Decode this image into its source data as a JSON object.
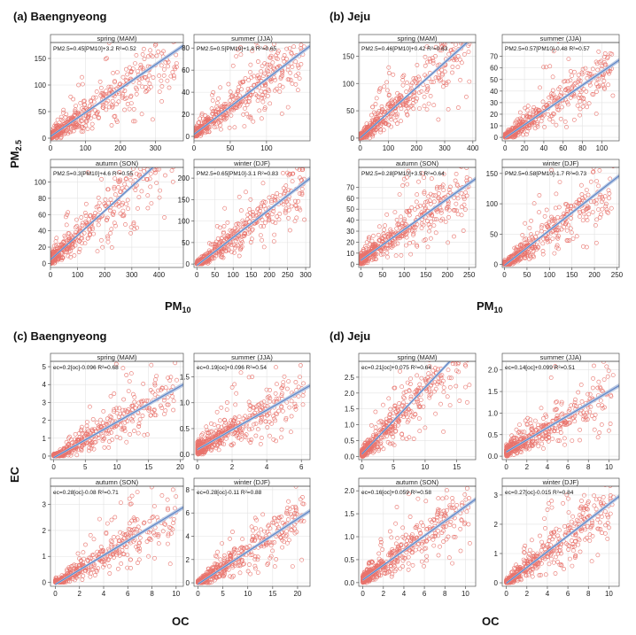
{
  "figure_labels": {
    "a_title": "(a) Baengnyeong",
    "b_title": "(b) Jeju",
    "c_title": "(c) Baengnyeong",
    "d_title": "(d) Jeju",
    "top_ylabel": "PM2.5",
    "top_xlabel_left": "PM10",
    "top_xlabel_right": "PM10",
    "bottom_ylabel": "EC",
    "bottom_xlabel_left": "OC",
    "bottom_xlabel_right": "OC"
  },
  "colors": {
    "points": "#e8736c",
    "fit_line": "#5b83c6",
    "confidence_band": "#b9c8e2"
  },
  "chart_data": [
    {
      "group": "a",
      "type": "scatter",
      "season": "spring (MAM)",
      "equation": "PM2.5=0.45[PM10]+3.2 R²=0.52",
      "slope": 0.45,
      "intercept": 3.2,
      "xlim": [
        0,
        380
      ],
      "ylim": [
        -5,
        180
      ],
      "xticks": [
        0,
        100,
        200,
        300
      ],
      "yticks": [
        0,
        50,
        100,
        150
      ],
      "xvar": "PM10",
      "yvar": "PM2.5"
    },
    {
      "group": "a",
      "type": "scatter",
      "season": "summer (JJA)",
      "equation": "PM2.5=0.5[PM10]+1.8 R²=0.65",
      "slope": 0.5,
      "intercept": 1.8,
      "xlim": [
        0,
        160
      ],
      "ylim": [
        -4,
        85
      ],
      "xticks": [
        0,
        50,
        100
      ],
      "yticks": [
        0,
        20,
        40,
        60,
        80
      ],
      "xvar": "PM10",
      "yvar": "PM2.5"
    },
    {
      "group": "a",
      "type": "scatter",
      "season": "autumn (SON)",
      "equation": "PM2.5=0.3[PM10]+4.6 R²=0.55",
      "slope": 0.3,
      "intercept": 4.6,
      "xlim": [
        0,
        490
      ],
      "ylim": [
        -5,
        118
      ],
      "xticks": [
        0,
        100,
        200,
        300,
        400
      ],
      "yticks": [
        0,
        20,
        40,
        60,
        80,
        100
      ],
      "xvar": "PM10",
      "yvar": "PM2.5"
    },
    {
      "group": "a",
      "type": "scatter",
      "season": "winter (DJF)",
      "equation": "PM2.5=0.65[PM10]-3.1 R²=0.83",
      "slope": 0.65,
      "intercept": -3.1,
      "xlim": [
        -8,
        312
      ],
      "ylim": [
        -8,
        225
      ],
      "xticks": [
        0,
        50,
        100,
        150,
        200,
        250,
        300
      ],
      "yticks": [
        0,
        50,
        100,
        150,
        200
      ],
      "xvar": "PM10",
      "yvar": "PM2.5"
    },
    {
      "group": "b",
      "type": "scatter",
      "season": "spring (MAM)",
      "equation": "PM2.5=0.46[PM10]+0.42 R²=0.63",
      "slope": 0.46,
      "intercept": 0.42,
      "xlim": [
        -5,
        410
      ],
      "ylim": [
        -5,
        175
      ],
      "xticks": [
        0,
        100,
        200,
        300,
        400
      ],
      "yticks": [
        0,
        50,
        100,
        150
      ],
      "xvar": "PM10",
      "yvar": "PM2.5"
    },
    {
      "group": "b",
      "type": "scatter",
      "season": "summer (JJA)",
      "equation": "PM2.5=0.57[PM10]-0.48 R²=0.57",
      "slope": 0.57,
      "intercept": -0.48,
      "xlim": [
        -3,
        118
      ],
      "ylim": [
        -3,
        82
      ],
      "xticks": [
        0,
        20,
        40,
        60,
        80,
        100
      ],
      "yticks": [
        0,
        10,
        20,
        30,
        40,
        50,
        60,
        70
      ],
      "xvar": "PM10",
      "yvar": "PM2.5"
    },
    {
      "group": "b",
      "type": "scatter",
      "season": "autumn (SON)",
      "equation": "PM2.5=0.28[PM10]+3.5 R²=0.64",
      "slope": 0.28,
      "intercept": 3.5,
      "xlim": [
        -5,
        265
      ],
      "ylim": [
        -3,
        88
      ],
      "xticks": [
        0,
        50,
        100,
        150,
        200,
        250
      ],
      "yticks": [
        0,
        10,
        20,
        30,
        40,
        50,
        60,
        70
      ],
      "xvar": "PM10",
      "yvar": "PM2.5"
    },
    {
      "group": "b",
      "type": "scatter",
      "season": "winter (DJF)",
      "equation": "PM2.5=0.58[PM10]-1.7 R²=0.73",
      "slope": 0.58,
      "intercept": -1.7,
      "xlim": [
        -5,
        255
      ],
      "ylim": [
        -5,
        160
      ],
      "xticks": [
        0,
        50,
        100,
        150,
        200,
        250
      ],
      "yticks": [
        0,
        50,
        100,
        150
      ],
      "xvar": "PM10",
      "yvar": "PM2.5"
    },
    {
      "group": "c",
      "type": "scatter",
      "season": "spring (MAM)",
      "equation": "ec=0.2[oc]-0.096 R²=0.68",
      "slope": 0.2,
      "intercept": -0.096,
      "xlim": [
        -0.5,
        20.5
      ],
      "ylim": [
        -0.2,
        5.3
      ],
      "xticks": [
        0,
        5,
        10,
        15,
        20
      ],
      "yticks": [
        0,
        1,
        2,
        3,
        4,
        5
      ],
      "xvar": "OC",
      "yvar": "EC"
    },
    {
      "group": "c",
      "type": "scatter",
      "season": "summer (JJA)",
      "equation": "ec=0.19[oc]+0.096 R²=0.54",
      "slope": 0.19,
      "intercept": 0.096,
      "xlim": [
        -0.2,
        6.5
      ],
      "ylim": [
        -0.1,
        1.8
      ],
      "xticks": [
        0,
        2,
        4,
        6
      ],
      "yticks": [
        0.0,
        0.5,
        1.0,
        1.5
      ],
      "xvar": "OC",
      "yvar": "EC"
    },
    {
      "group": "c",
      "type": "scatter",
      "season": "autumn (SON)",
      "equation": "ec=0.28[oc]-0.08 R²=0.71",
      "slope": 0.28,
      "intercept": -0.08,
      "xlim": [
        -0.4,
        10.6
      ],
      "ylim": [
        -0.15,
        3.7
      ],
      "xticks": [
        0,
        2,
        4,
        6,
        8,
        10
      ],
      "yticks": [
        0,
        1,
        2,
        3
      ],
      "xvar": "OC",
      "yvar": "EC"
    },
    {
      "group": "c",
      "type": "scatter",
      "season": "winter (DJF)",
      "equation": "ec=0.28[oc]-0.11 R²=0.88",
      "slope": 0.28,
      "intercept": -0.11,
      "xlim": [
        -0.8,
        22.5
      ],
      "ylim": [
        -0.3,
        8.3
      ],
      "xticks": [
        0,
        5,
        10,
        15,
        20
      ],
      "yticks": [
        0,
        2,
        4,
        6,
        8
      ],
      "xvar": "OC",
      "yvar": "EC"
    },
    {
      "group": "d",
      "type": "scatter",
      "season": "spring (MAM)",
      "equation": "ec=0.21[oc]+0.075 R²=0.64",
      "slope": 0.21,
      "intercept": 0.075,
      "xlim": [
        -0.5,
        18
      ],
      "ylim": [
        -0.1,
        3.0
      ],
      "xticks": [
        0,
        5,
        10,
        15
      ],
      "yticks": [
        0.0,
        0.5,
        1.0,
        1.5,
        2.0,
        2.5
      ],
      "xvar": "OC",
      "yvar": "EC"
    },
    {
      "group": "d",
      "type": "scatter",
      "season": "summer (JJA)",
      "equation": "ec=0.14[oc]+0.099 R²=0.51",
      "slope": 0.14,
      "intercept": 0.099,
      "xlim": [
        -0.4,
        11
      ],
      "ylim": [
        -0.08,
        2.2
      ],
      "xticks": [
        0,
        2,
        4,
        6,
        8,
        10
      ],
      "yticks": [
        0.0,
        0.5,
        1.0,
        1.5,
        2.0
      ],
      "xvar": "OC",
      "yvar": "EC"
    },
    {
      "group": "d",
      "type": "scatter",
      "season": "autumn (SON)",
      "equation": "ec=0.16[oc]+0.059 R²=0.58",
      "slope": 0.16,
      "intercept": 0.059,
      "xlim": [
        -0.4,
        11
      ],
      "ylim": [
        -0.08,
        2.1
      ],
      "xticks": [
        0,
        2,
        4,
        6,
        8,
        10
      ],
      "yticks": [
        0.0,
        0.5,
        1.0,
        1.5,
        2.0
      ],
      "xvar": "OC",
      "yvar": "EC"
    },
    {
      "group": "d",
      "type": "scatter",
      "season": "winter (DJF)",
      "equation": "ec=0.27[oc]-0.015 R²=0.84",
      "slope": 0.27,
      "intercept": -0.015,
      "xlim": [
        -0.4,
        11
      ],
      "ylim": [
        -0.12,
        3.3
      ],
      "xticks": [
        0,
        2,
        4,
        6,
        8,
        10
      ],
      "yticks": [
        0,
        1,
        2,
        3
      ],
      "xvar": "OC",
      "yvar": "EC"
    }
  ]
}
